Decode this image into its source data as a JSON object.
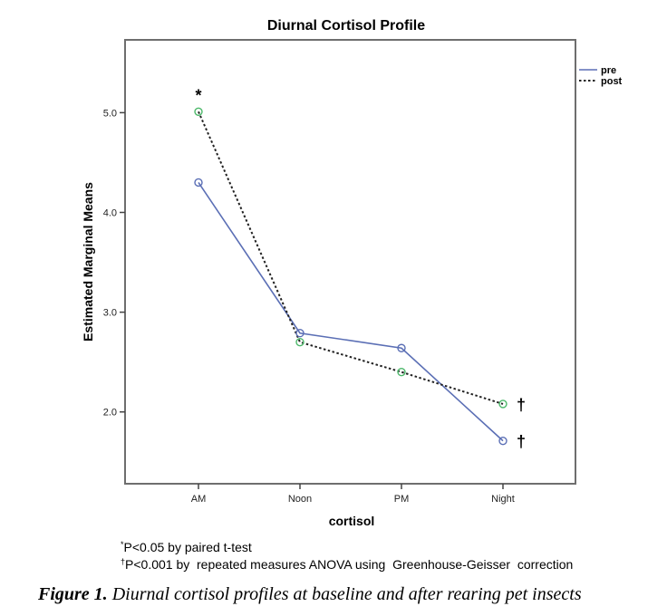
{
  "chart_data": {
    "type": "line",
    "title": "Diurnal Cortisol Profile",
    "xlabel": "cortisol",
    "ylabel": "Estimated Marginal Means",
    "categories": [
      "AM",
      "Noon",
      "PM",
      "Night"
    ],
    "yticks": [
      "2.0",
      "3.0",
      "4.0",
      "5.0"
    ],
    "ytick_values": [
      2.0,
      3.0,
      4.0,
      5.0
    ],
    "ylim": [
      1.28,
      5.73
    ],
    "grid": false,
    "legend_position": "right",
    "series": [
      {
        "name": "pre",
        "values": [
          4.3,
          2.79,
          2.64,
          1.71
        ],
        "color": "#5B6FB5",
        "style": "solid",
        "marker_color": "#5B6FB5"
      },
      {
        "name": "post",
        "values": [
          5.01,
          2.7,
          2.4,
          2.08
        ],
        "color": "#222222",
        "style": "dotted",
        "marker_color": "#4CB86A"
      }
    ],
    "annotations": [
      {
        "text": "*",
        "category": "AM",
        "series": "post"
      },
      {
        "text": "†",
        "category": "Night",
        "series": "post"
      },
      {
        "text": "†",
        "category": "Night",
        "series": "pre"
      }
    ]
  },
  "footnotes": [
    {
      "symbol": "*",
      "text": "P<0.05 by paired t-test"
    },
    {
      "symbol": "†",
      "text": "P<0.001 by  repeated measures ANOVA using  Greenhouse-Geisser  correction"
    }
  ],
  "caption": {
    "label": "Figure 1.",
    "text": " Diurnal cortisol profiles at baseline and after rearing pet insects"
  }
}
